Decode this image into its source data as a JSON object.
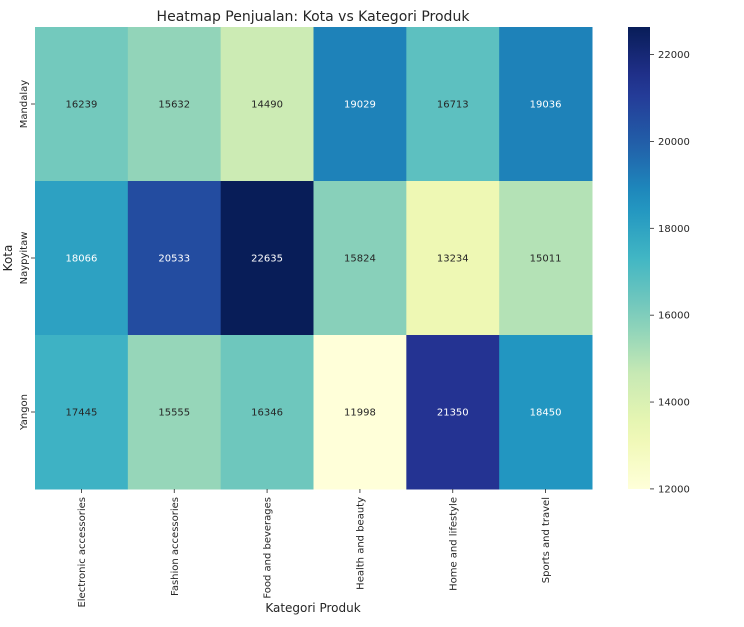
{
  "chart_data": {
    "type": "heatmap",
    "title": "Heatmap Penjualan: Kota vs Kategori Produk",
    "xlabel": "Kategori Produk",
    "ylabel": "Kota",
    "x_categories": [
      "Electronic accessories",
      "Fashion accessories",
      "Food and beverages",
      "Health and beauty",
      "Home and lifestyle",
      "Sports and travel"
    ],
    "y_categories": [
      "Mandalay",
      "Naypyitaw",
      "Yangon"
    ],
    "values": [
      [
        16239,
        15632,
        14490,
        19029,
        16713,
        19036
      ],
      [
        18066,
        20533,
        22635,
        15824,
        13234,
        15011
      ],
      [
        17445,
        15555,
        16346,
        11998,
        21350,
        18450
      ]
    ],
    "value_labels": [
      [
        "16239",
        "15632",
        "14490",
        "19029",
        "16713",
        "19036"
      ],
      [
        "18066",
        "20533",
        "22635",
        "15824",
        "13234",
        "15011"
      ],
      [
        "17445",
        "15555",
        "16346",
        "11998",
        "21350",
        "18450"
      ]
    ],
    "colormap": "YlGnBu",
    "colorbar": {
      "range": [
        11998,
        22635
      ],
      "ticks": [
        12000,
        14000,
        16000,
        18000,
        20000,
        22000
      ],
      "tick_labels": [
        "12000",
        "14000",
        "16000",
        "18000",
        "20000",
        "22000"
      ],
      "placement": "right"
    },
    "grid": false
  }
}
